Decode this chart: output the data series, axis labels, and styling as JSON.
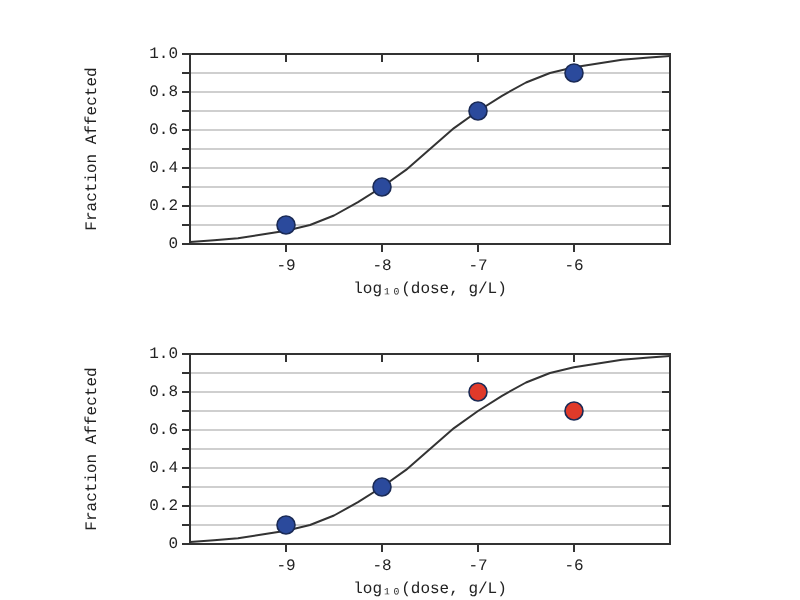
{
  "chart_data": [
    {
      "type": "scatter",
      "xlabel": "log₁₀(dose, g/L)",
      "ylabel": "Fraction Affected",
      "xlim": [
        -10,
        -5
      ],
      "xticks": [
        -9,
        -8,
        -7,
        -6
      ],
      "ylim": [
        0,
        1
      ],
      "yticks": [
        0,
        {
          "value": 0.1,
          "label": null
        },
        0.2,
        {
          "value": 0.3,
          "label": null
        },
        0.4,
        {
          "value": 0.5,
          "label": null
        },
        0.6,
        {
          "value": 0.7,
          "label": null
        },
        0.8,
        {
          "value": 0.9,
          "label": null
        },
        {
          "value": 1,
          "label": "1.0"
        }
      ],
      "grid": "y",
      "legend": false,
      "series": [
        {
          "type": "line",
          "color": "#333333",
          "marker": "none",
          "x": [
            -10,
            -9.75,
            -9.5,
            -9.25,
            -9,
            -8.75,
            -8.5,
            -8.25,
            -8,
            -7.75,
            -7.5,
            -7.25,
            -7,
            -6.75,
            -6.5,
            -6.25,
            -6,
            -5.75,
            -5.5,
            -5.25,
            -5
          ],
          "values": [
            0.01,
            0.02,
            0.03,
            0.05,
            0.07,
            0.1,
            0.15,
            0.22,
            0.3,
            0.39,
            0.5,
            0.61,
            0.7,
            0.78,
            0.85,
            0.9,
            0.93,
            0.95,
            0.97,
            0.98,
            0.99
          ]
        },
        {
          "type": "scatter",
          "color": "#2b4a9c",
          "marker": "circle",
          "x": [
            -9,
            -8,
            -7,
            -6
          ],
          "values": [
            0.1,
            0.3,
            0.7,
            0.9
          ]
        }
      ]
    },
    {
      "type": "scatter",
      "xlabel": "log₁₀(dose, g/L)",
      "ylabel": "Fraction Affected",
      "xlim": [
        -10,
        -5
      ],
      "xticks": [
        -9,
        -8,
        -7,
        -6
      ],
      "ylim": [
        0,
        1
      ],
      "yticks": [
        0,
        {
          "value": 0.1,
          "label": null
        },
        0.2,
        {
          "value": 0.3,
          "label": null
        },
        0.4,
        {
          "value": 0.5,
          "label": null
        },
        0.6,
        {
          "value": 0.7,
          "label": null
        },
        0.8,
        {
          "value": 0.9,
          "label": null
        },
        {
          "value": 1,
          "label": "1.0"
        }
      ],
      "grid": "y",
      "legend": false,
      "series": [
        {
          "type": "line",
          "color": "#333333",
          "marker": "none",
          "x": [
            -10,
            -9.75,
            -9.5,
            -9.25,
            -9,
            -8.75,
            -8.5,
            -8.25,
            -8,
            -7.75,
            -7.5,
            -7.25,
            -7,
            -6.75,
            -6.5,
            -6.25,
            -6,
            -5.75,
            -5.5,
            -5.25,
            -5
          ],
          "values": [
            0.01,
            0.02,
            0.03,
            0.05,
            0.07,
            0.1,
            0.15,
            0.22,
            0.3,
            0.39,
            0.5,
            0.61,
            0.7,
            0.78,
            0.85,
            0.9,
            0.93,
            0.95,
            0.97,
            0.98,
            0.99
          ]
        },
        {
          "type": "scatter",
          "color": "#2b4a9c",
          "marker": "circle",
          "x": [
            -9,
            -8
          ],
          "values": [
            0.1,
            0.3
          ]
        },
        {
          "type": "scatter",
          "color": "#e03a2a",
          "marker": "circle",
          "x": [
            -7,
            -6
          ],
          "values": [
            0.8,
            0.7
          ]
        }
      ]
    }
  ]
}
